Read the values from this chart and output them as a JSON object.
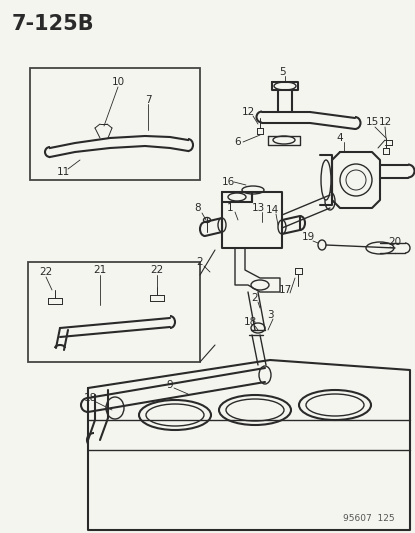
{
  "title": "7-125B",
  "footer": "95607  125",
  "bg_color": "#f5f5f0",
  "line_color": "#2a2a2a",
  "title_fontsize": 15,
  "label_fontsize": 7.5
}
